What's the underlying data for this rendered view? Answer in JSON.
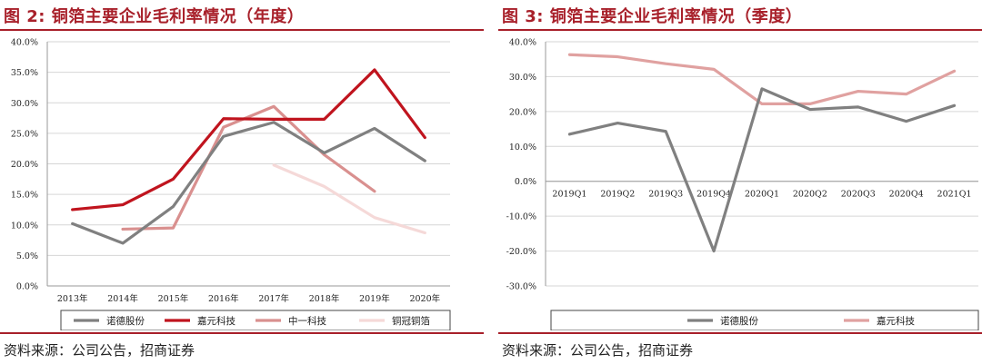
{
  "left": {
    "title": "图 2:  铜箔主要企业毛利率情况（年度）",
    "source": "资料来源：公司公告，招商证券",
    "chart_data": {
      "type": "line",
      "title": "铜箔主要企业毛利率情况（年度）",
      "categories": [
        "2013年",
        "2014年",
        "2015年",
        "2016年",
        "2017年",
        "2018年",
        "2019年",
        "2020年"
      ],
      "ylim": [
        0,
        40
      ],
      "yticks": [
        0,
        5,
        10,
        15,
        20,
        25,
        30,
        35,
        40
      ],
      "ytick_labels": [
        "0.0%",
        "5.0%",
        "10.0%",
        "15.0%",
        "20.0%",
        "25.0%",
        "30.0%",
        "35.0%",
        "40.0%"
      ],
      "legend_position": "bottom",
      "series": [
        {
          "name": "诺德股份",
          "color": "#808080",
          "values": [
            10.2,
            7.0,
            13.0,
            24.5,
            26.8,
            21.8,
            25.8,
            20.5
          ]
        },
        {
          "name": "嘉元科技",
          "color": "#c0141e",
          "values": [
            12.5,
            13.3,
            17.5,
            27.4,
            27.3,
            27.3,
            35.4,
            24.3
          ]
        },
        {
          "name": "中一科技",
          "color": "#d9908f",
          "values": [
            null,
            9.3,
            9.5,
            26.0,
            29.4,
            21.5,
            15.5,
            null
          ]
        },
        {
          "name": "铜冠铜箔",
          "color": "#f5d9d8",
          "values": [
            null,
            null,
            null,
            null,
            19.8,
            16.3,
            11.2,
            8.7
          ]
        }
      ]
    }
  },
  "right": {
    "title": "图 3:  铜箔主要企业毛利率情况（季度）",
    "source": "资料来源：公司公告，招商证券",
    "chart_data": {
      "type": "line",
      "title": "铜箔主要企业毛利率情况（季度）",
      "categories": [
        "2019Q1",
        "2019Q2",
        "2019Q3",
        "2019Q4",
        "2020Q1",
        "2020Q2",
        "2020Q3",
        "2020Q4",
        "2021Q1"
      ],
      "ylim": [
        -30,
        40
      ],
      "yticks": [
        -30,
        -20,
        -10,
        0,
        10,
        20,
        30,
        40
      ],
      "ytick_labels": [
        "-30.0%",
        "-20.0%",
        "-10.0%",
        "0.0%",
        "10.0%",
        "20.0%",
        "30.0%",
        "40.0%"
      ],
      "legend_position": "bottom",
      "series": [
        {
          "name": "诺德股份",
          "color": "#808080",
          "values": [
            13.5,
            16.7,
            14.3,
            -20.0,
            26.5,
            20.6,
            21.3,
            17.2,
            21.7
          ]
        },
        {
          "name": "嘉元科技",
          "color": "#e0a1a0",
          "values": [
            36.3,
            35.7,
            33.7,
            32.1,
            22.2,
            22.2,
            25.8,
            25.0,
            31.6
          ]
        }
      ]
    }
  }
}
